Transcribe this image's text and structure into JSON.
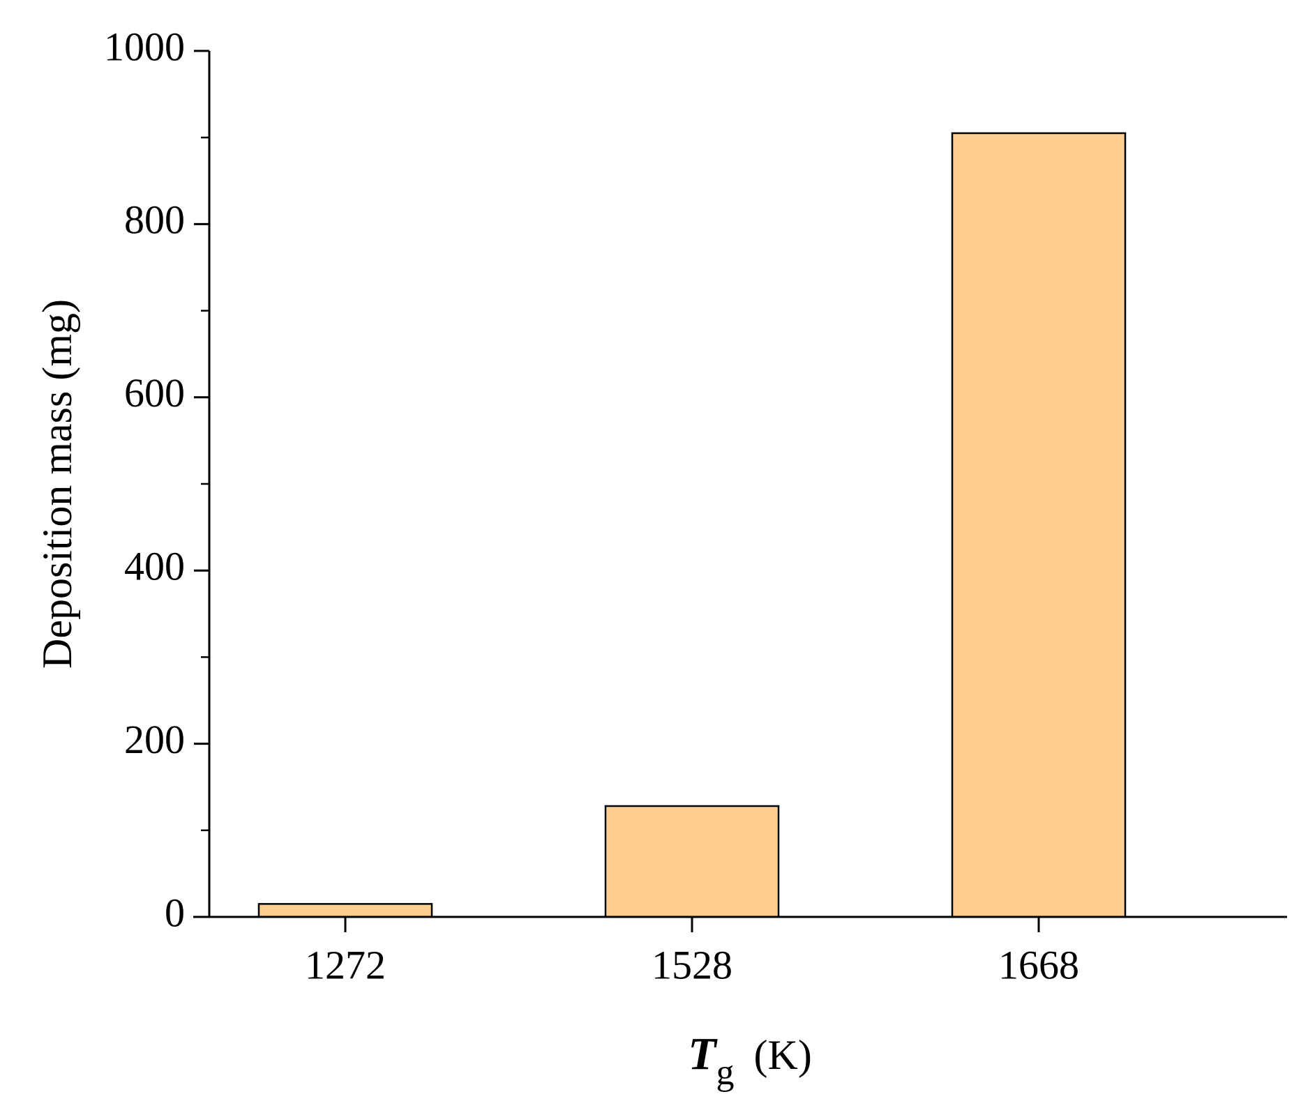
{
  "chart_data": {
    "type": "bar",
    "categories": [
      "1272",
      "1528",
      "1668"
    ],
    "values": [
      15,
      128,
      905
    ],
    "xlabel": {
      "symbol": "T",
      "subscript": "g",
      "unit": "(K)"
    },
    "ylabel": "Deposition mass (mg)",
    "ylim": [
      0,
      1000
    ],
    "yticks": [
      0,
      200,
      400,
      600,
      800,
      1000
    ],
    "minor_ticks": true,
    "grid": false,
    "legend": "none",
    "colors": {
      "bar_fill": "#FECF90",
      "bar_stroke": "#000000",
      "axis": "#000000"
    }
  }
}
